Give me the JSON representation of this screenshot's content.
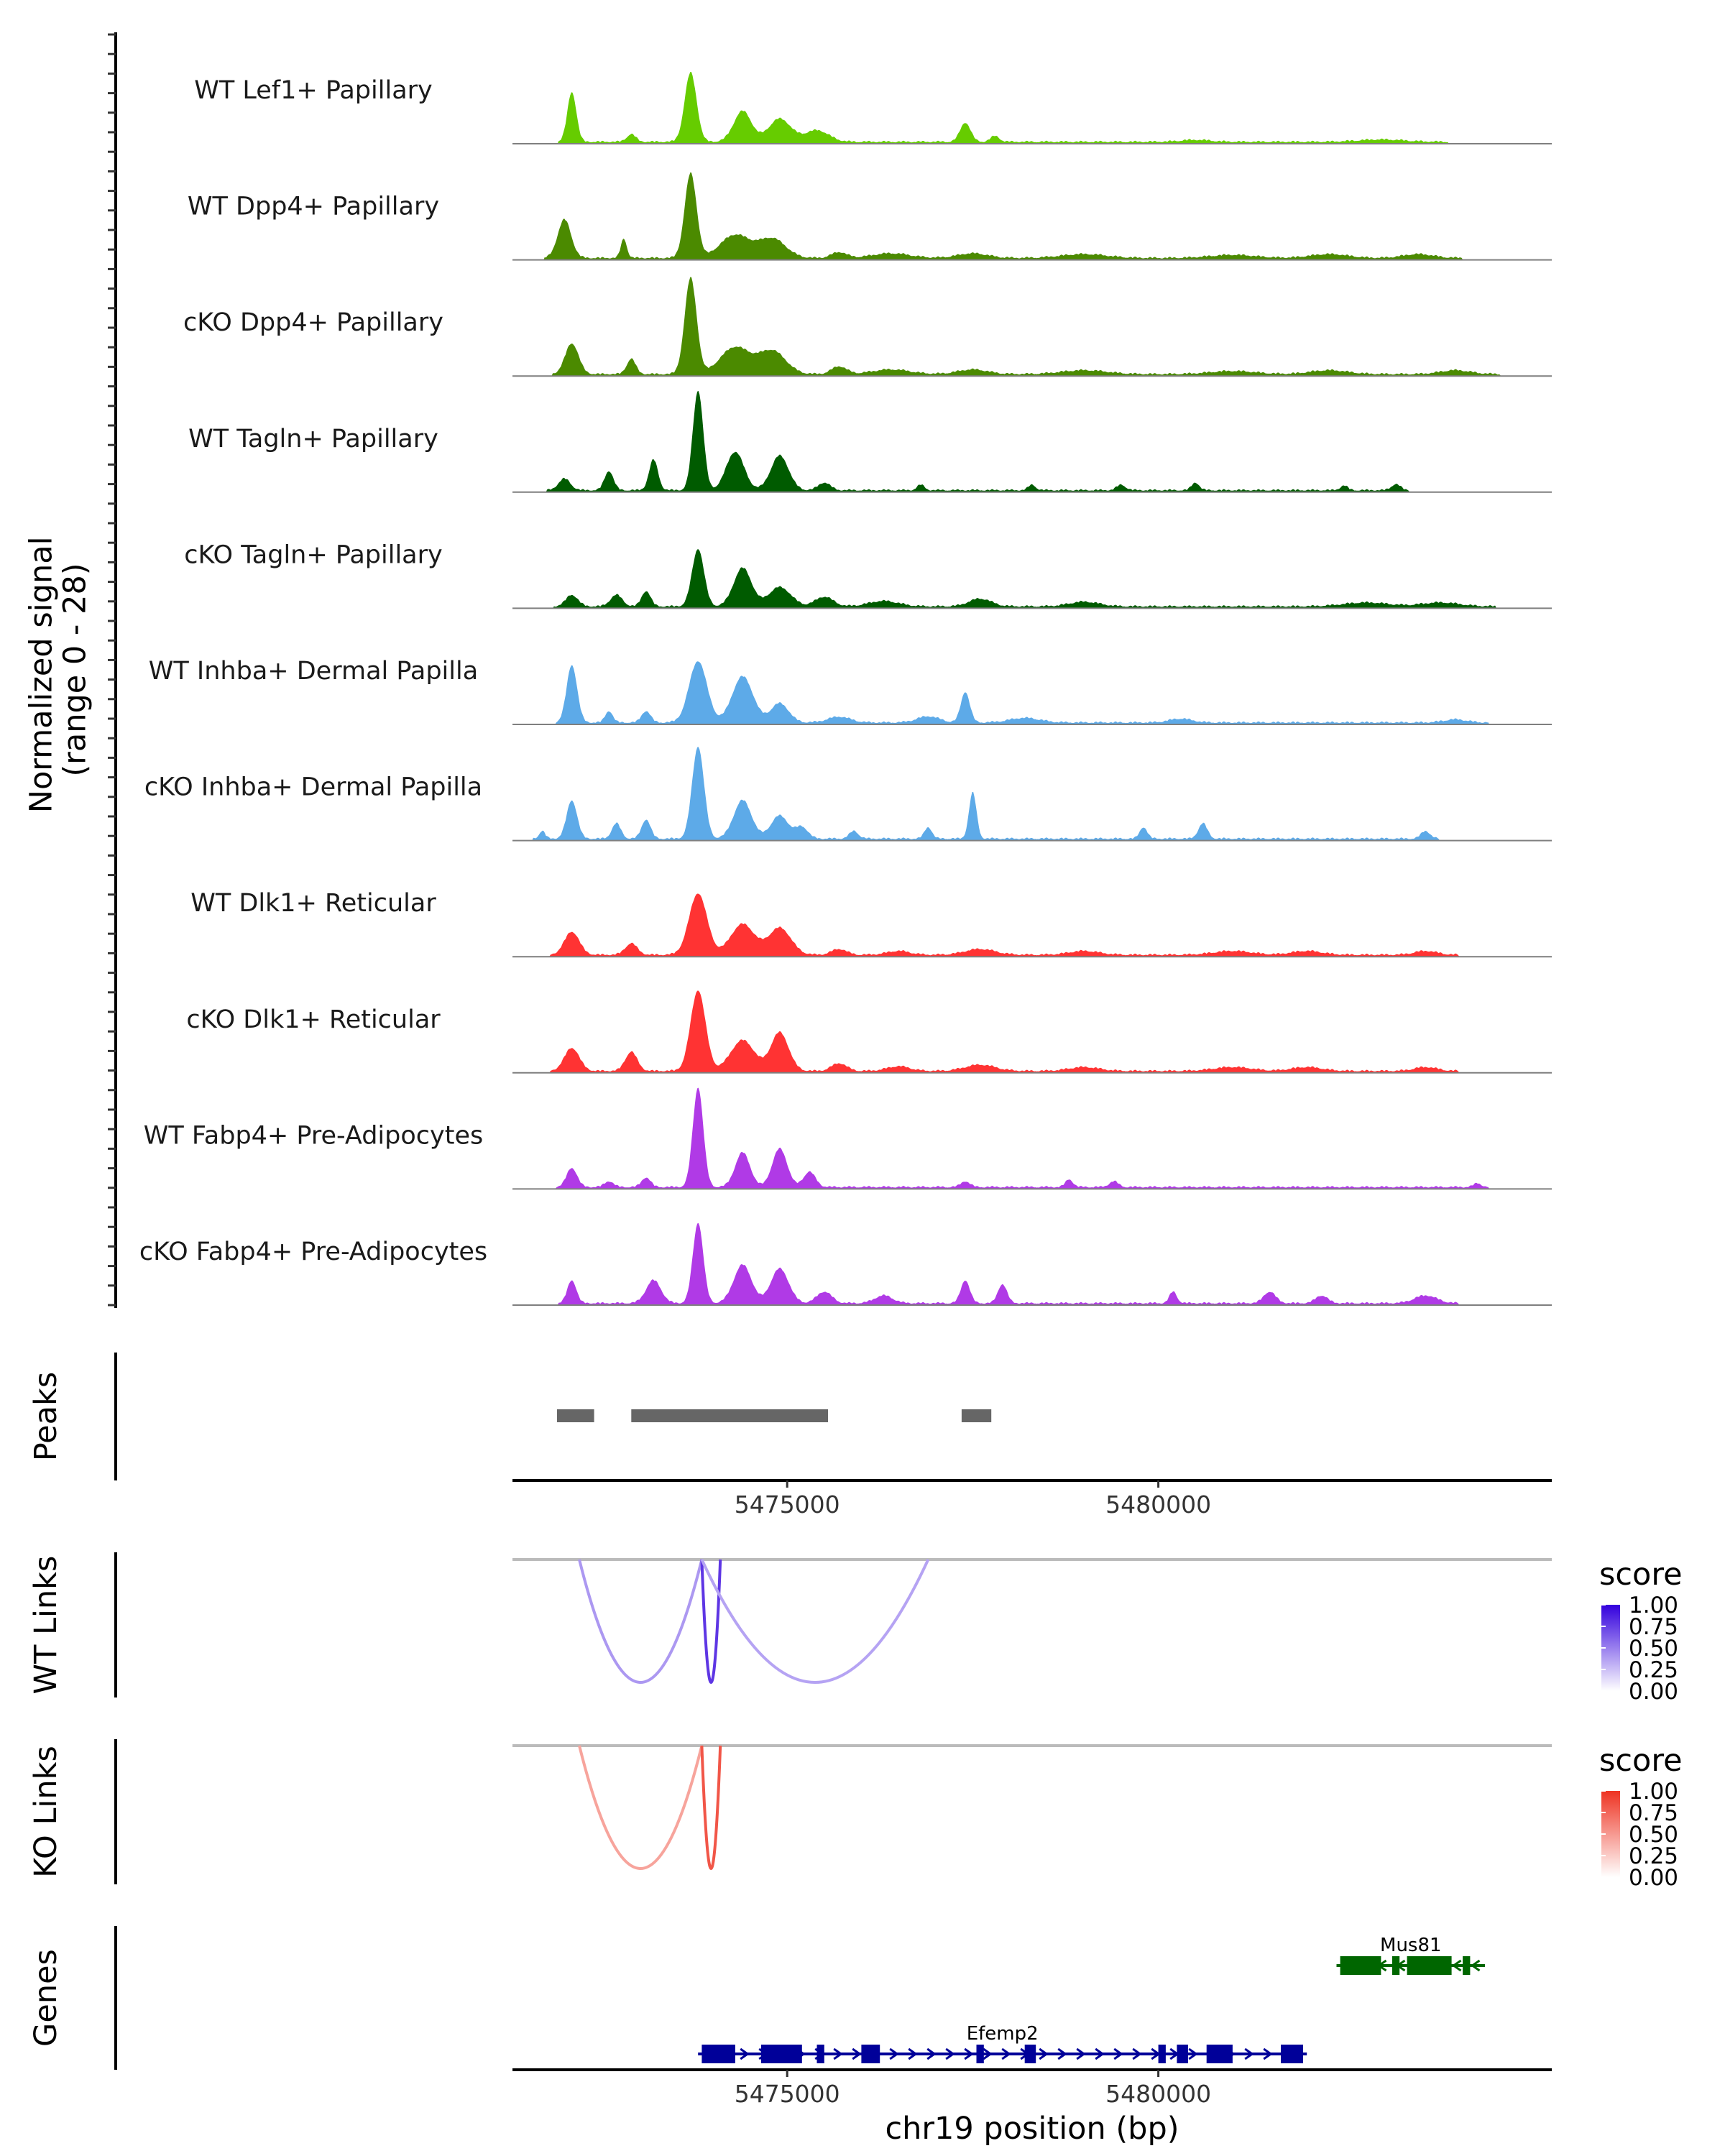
{
  "chart_data": {
    "type": "area",
    "title": "",
    "xlabel": "chr19 position (bp)",
    "ylabel": "Normalized signal\n(range 0 - 28)",
    "ylabel_lines": [
      "Normalized signal",
      "(range 0 - 28)"
    ],
    "xlim": [
      5471300,
      5485300
    ],
    "ylim": [
      0,
      28
    ],
    "x_ticks": [
      5475000,
      5480000
    ],
    "x_tick_labels": [
      "5475000",
      "5480000"
    ],
    "tracks": [
      {
        "name": "WT Lef1+ Papillary",
        "color": "#66CC00",
        "peaks": [
          [
            5472100,
            13,
            60
          ],
          [
            5473700,
            18,
            80
          ],
          [
            5474400,
            8,
            120
          ],
          [
            5474900,
            6,
            150
          ],
          [
            5475400,
            3,
            160
          ],
          [
            5472900,
            2,
            60
          ],
          [
            5477400,
            5,
            70
          ],
          [
            5477800,
            1.5,
            60
          ],
          [
            5480500,
            0.5,
            200
          ],
          [
            5483000,
            0.6,
            300
          ]
        ]
      },
      {
        "name": "WT Dpp4+ Papillary",
        "color": "#4B8A00",
        "peaks": [
          [
            5472000,
            10,
            90
          ],
          [
            5473700,
            22,
            80
          ],
          [
            5474300,
            6,
            200
          ],
          [
            5474800,
            5,
            180
          ],
          [
            5472800,
            5,
            40
          ],
          [
            5475700,
            1.5,
            100
          ],
          [
            5476400,
            1.2,
            250
          ],
          [
            5477500,
            1.2,
            200
          ],
          [
            5479000,
            1,
            300
          ],
          [
            5482300,
            1,
            250
          ],
          [
            5483500,
            1,
            200
          ],
          [
            5481000,
            0.8,
            300
          ]
        ]
      },
      {
        "name": "cKO Dpp4+ Papillary",
        "color": "#4B8A00",
        "peaks": [
          [
            5472100,
            8,
            90
          ],
          [
            5473700,
            25,
            80
          ],
          [
            5474300,
            7,
            200
          ],
          [
            5474800,
            6,
            180
          ],
          [
            5472900,
            4,
            60
          ],
          [
            5475700,
            2,
            100
          ],
          [
            5476400,
            1.2,
            250
          ],
          [
            5477500,
            1.2,
            200
          ],
          [
            5479000,
            1,
            300
          ],
          [
            5482300,
            1,
            250
          ],
          [
            5484000,
            1,
            200
          ],
          [
            5481000,
            0.8,
            300
          ]
        ]
      },
      {
        "name": "WT Tagln+ Papillary",
        "color": "#005B00",
        "peaks": [
          [
            5473800,
            26,
            70
          ],
          [
            5474300,
            10,
            120
          ],
          [
            5474900,
            9,
            120
          ],
          [
            5473200,
            8,
            60
          ],
          [
            5472600,
            5,
            60
          ],
          [
            5472000,
            3,
            80
          ],
          [
            5475500,
            2,
            80
          ],
          [
            5476800,
            1.4,
            50
          ],
          [
            5478300,
            1.4,
            50
          ],
          [
            5479500,
            1.4,
            60
          ],
          [
            5480500,
            2,
            50
          ],
          [
            5482500,
            1.2,
            50
          ],
          [
            5483200,
            1.6,
            60
          ]
        ]
      },
      {
        "name": "cKO Tagln+ Papillary",
        "color": "#005B00",
        "peaks": [
          [
            5473800,
            15,
            80
          ],
          [
            5474400,
            10,
            120
          ],
          [
            5474900,
            5,
            150
          ],
          [
            5473100,
            4,
            60
          ],
          [
            5472100,
            3,
            80
          ],
          [
            5472700,
            3,
            80
          ],
          [
            5475500,
            2.5,
            120
          ],
          [
            5476300,
            1.4,
            200
          ],
          [
            5477600,
            2,
            150
          ],
          [
            5479000,
            1.2,
            200
          ],
          [
            5482800,
            1,
            300
          ],
          [
            5483800,
            1,
            250
          ]
        ]
      },
      {
        "name": "WT Inhba+ Dermal Papilla",
        "color": "#5DAAE8",
        "peaks": [
          [
            5472100,
            15,
            70
          ],
          [
            5473800,
            16,
            120
          ],
          [
            5474400,
            12,
            140
          ],
          [
            5474900,
            5,
            120
          ],
          [
            5472600,
            3,
            50
          ],
          [
            5473100,
            3,
            60
          ],
          [
            5475700,
            1.5,
            150
          ],
          [
            5476900,
            1.6,
            150
          ],
          [
            5477400,
            8,
            60
          ],
          [
            5478200,
            1.2,
            200
          ],
          [
            5480300,
            1,
            150
          ],
          [
            5484000,
            0.8,
            150
          ]
        ]
      },
      {
        "name": "cKO Inhba+ Dermal Papilla",
        "color": "#5DAAE8",
        "peaks": [
          [
            5473800,
            24,
            80
          ],
          [
            5474400,
            10,
            120
          ],
          [
            5474900,
            6,
            120
          ],
          [
            5472100,
            10,
            70
          ],
          [
            5472700,
            4,
            60
          ],
          [
            5473100,
            5,
            60
          ],
          [
            5471700,
            2,
            40
          ],
          [
            5475200,
            3,
            80
          ],
          [
            5475900,
            2,
            60
          ],
          [
            5476900,
            3,
            50
          ],
          [
            5477500,
            12,
            50
          ],
          [
            5479800,
            3,
            50
          ],
          [
            5480600,
            4,
            60
          ],
          [
            5483600,
            2,
            60
          ]
        ]
      },
      {
        "name": "WT Dlk1+ Reticular",
        "color": "#FF3333",
        "peaks": [
          [
            5473800,
            16,
            120
          ],
          [
            5474400,
            8,
            160
          ],
          [
            5474900,
            7,
            150
          ],
          [
            5472100,
            6,
            100
          ],
          [
            5472900,
            3,
            80
          ],
          [
            5475700,
            1.5,
            100
          ],
          [
            5476500,
            1,
            150
          ],
          [
            5477600,
            1.5,
            200
          ],
          [
            5479000,
            1,
            200
          ],
          [
            5481000,
            1,
            250
          ],
          [
            5482000,
            1,
            200
          ],
          [
            5483600,
            1,
            150
          ]
        ]
      },
      {
        "name": "cKO Dlk1+ Reticular",
        "color": "#FF3333",
        "peaks": [
          [
            5473800,
            21,
            100
          ],
          [
            5474400,
            8,
            160
          ],
          [
            5474900,
            10,
            120
          ],
          [
            5472100,
            6,
            100
          ],
          [
            5472900,
            5,
            80
          ],
          [
            5475700,
            2,
            100
          ],
          [
            5476500,
            1.2,
            150
          ],
          [
            5477600,
            1.6,
            200
          ],
          [
            5479000,
            1,
            200
          ],
          [
            5481000,
            1,
            250
          ],
          [
            5482000,
            1,
            200
          ],
          [
            5483600,
            1,
            150
          ]
        ]
      },
      {
        "name": "WT Fabp4+ Pre-Adipocytes",
        "color": "#B03AE6",
        "peaks": [
          [
            5473800,
            26,
            70
          ],
          [
            5474400,
            9,
            100
          ],
          [
            5474900,
            10,
            100
          ],
          [
            5475300,
            4,
            80
          ],
          [
            5472100,
            5,
            70
          ],
          [
            5473100,
            2.5,
            60
          ],
          [
            5472600,
            1.5,
            60
          ],
          [
            5477400,
            1.5,
            60
          ],
          [
            5478800,
            2,
            50
          ],
          [
            5479400,
            1.5,
            60
          ],
          [
            5484300,
            1,
            50
          ]
        ]
      },
      {
        "name": "cKO Fabp4+ Pre-Adipocytes",
        "color": "#B03AE6",
        "peaks": [
          [
            5473800,
            21,
            70
          ],
          [
            5474400,
            10,
            120
          ],
          [
            5474900,
            9,
            120
          ],
          [
            5473200,
            6,
            100
          ],
          [
            5472100,
            6,
            60
          ],
          [
            5475500,
            3,
            100
          ],
          [
            5476300,
            2,
            120
          ],
          [
            5477400,
            6,
            60
          ],
          [
            5477900,
            5,
            60
          ],
          [
            5480200,
            3,
            50
          ],
          [
            5481500,
            3,
            80
          ],
          [
            5482200,
            2,
            80
          ],
          [
            5483600,
            2,
            150
          ]
        ]
      }
    ],
    "peaks_track": {
      "label": "Peaks",
      "regions": [
        [
          5471900,
          5472400
        ],
        [
          5472900,
          5475550
        ],
        [
          5477350,
          5477750
        ]
      ],
      "color": "#666666"
    },
    "wt_links": {
      "label": "WT Links",
      "legend_title": "score",
      "legend_ticks": [
        "1.00",
        "0.75",
        "0.50",
        "0.25",
        "0.00"
      ],
      "color_high": "#3300DD",
      "links": [
        {
          "start": 5472200,
          "end": 5473850,
          "score": 0.3,
          "depth": 0.9
        },
        {
          "start": 5473850,
          "end": 5474100,
          "score": 0.75,
          "depth": 0.9
        },
        {
          "start": 5473850,
          "end": 5476900,
          "score": 0.25,
          "depth": 0.9
        }
      ]
    },
    "ko_links": {
      "label": "KO Links",
      "legend_title": "score",
      "legend_ticks": [
        "1.00",
        "0.75",
        "0.50",
        "0.25",
        "0.00"
      ],
      "color_high": "#EE3322",
      "links": [
        {
          "start": 5472200,
          "end": 5473850,
          "score": 0.35,
          "depth": 0.9
        },
        {
          "start": 5473850,
          "end": 5474100,
          "score": 0.8,
          "depth": 0.9
        }
      ]
    },
    "genes_track": {
      "label": "Genes",
      "genes": [
        {
          "name": "Mus81",
          "start": 5482400,
          "end": 5484400,
          "strand": "-",
          "color": "#006600",
          "row": 0,
          "exons": [
            [
              5482450,
              5483000
            ],
            [
              5483150,
              5483250
            ],
            [
              5483350,
              5483950
            ],
            [
              5484100,
              5484200
            ]
          ]
        },
        {
          "name": "Efemp2",
          "start": 5473800,
          "end": 5482000,
          "strand": "+",
          "color": "#000099",
          "row": 1,
          "exons": [
            [
              5473850,
              5474300
            ],
            [
              5474650,
              5475200
            ],
            [
              5475400,
              5475500
            ],
            [
              5476000,
              5476250
            ],
            [
              5477550,
              5477650
            ],
            [
              5478200,
              5478350
            ],
            [
              5480000,
              5480100
            ],
            [
              5480250,
              5480400
            ],
            [
              5480650,
              5481000
            ],
            [
              5481650,
              5481950
            ]
          ]
        }
      ]
    }
  }
}
